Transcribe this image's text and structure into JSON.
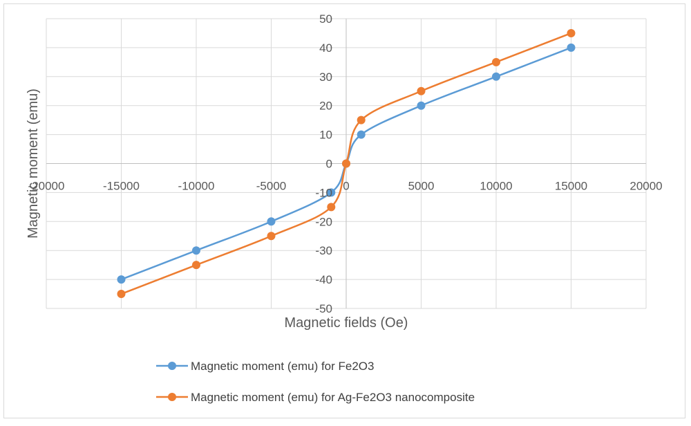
{
  "chart_data": {
    "type": "scatter",
    "title": "",
    "xlabel": "Magnetic fields (Oe)",
    "ylabel": "Magnetic moment (emu)",
    "xlim": [
      -20000,
      20000
    ],
    "ylim": [
      -50,
      50
    ],
    "xticks": [
      -20000,
      -15000,
      -10000,
      -5000,
      0,
      5000,
      10000,
      15000,
      20000
    ],
    "yticks": [
      -50,
      -40,
      -30,
      -20,
      -10,
      0,
      10,
      20,
      30,
      40,
      50
    ],
    "grid": true,
    "smooth_lines": true,
    "legend_position": "bottom",
    "series": [
      {
        "name": "Magnetic moment (emu) for Fe2O3",
        "color": "#5b9bd5",
        "x": [
          -15000,
          -10000,
          -5000,
          -1000,
          0,
          1000,
          5000,
          10000,
          15000
        ],
        "y": [
          -40,
          -30,
          -20,
          -10,
          0,
          10,
          20,
          30,
          40
        ]
      },
      {
        "name": "Magnetic moment (emu) for Ag-Fe2O3  nanocomposite",
        "color": "#ed7d31",
        "x": [
          -15000,
          -10000,
          -5000,
          -1000,
          0,
          1000,
          5000,
          10000,
          15000
        ],
        "y": [
          -45,
          -35,
          -25,
          -15,
          0,
          15,
          25,
          35,
          45
        ]
      }
    ]
  }
}
